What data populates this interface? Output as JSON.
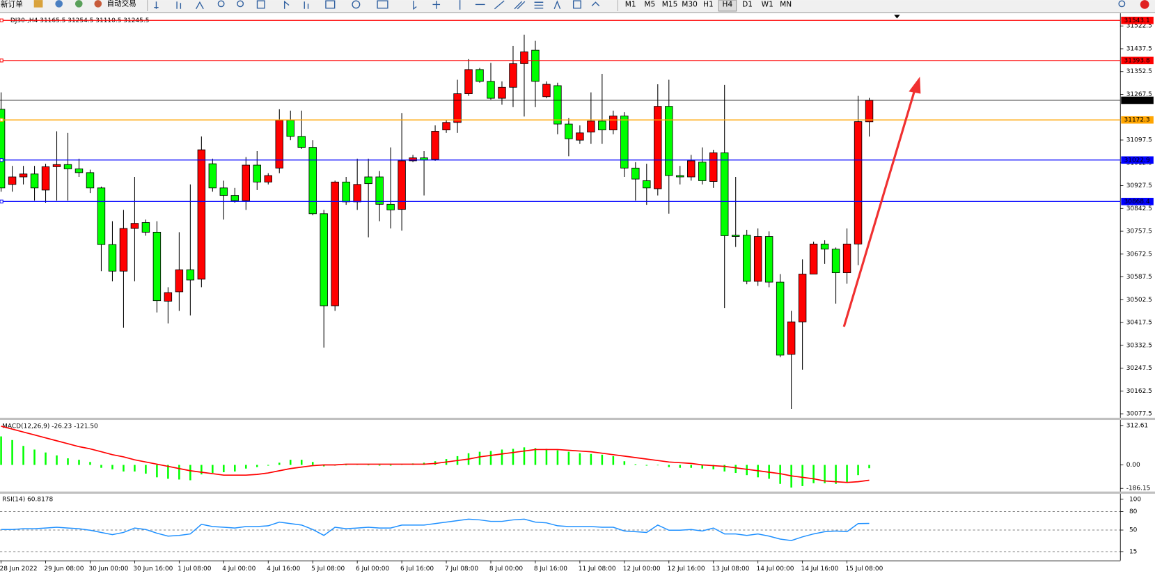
{
  "toolbar": {
    "buttons": [
      "新订单",
      "自动交易"
    ],
    "timeframes": [
      "M1",
      "M5",
      "M15",
      "M30",
      "H1",
      "H4",
      "D1",
      "W1",
      "MN"
    ]
  },
  "chart_data": [
    {
      "type": "candlestick",
      "title": "DJ30-,H4  31165.5 31254.5 31110.5 31245.5",
      "categories": [
        "28 Jun 2022",
        null,
        null,
        null,
        "29 Jun 08:00",
        null,
        null,
        null,
        "30 Jun 00:00",
        null,
        null,
        null,
        "30 Jun 16:00",
        null,
        null,
        null,
        "1 Jul 08:00",
        null,
        null,
        null,
        "4 Jul 00:00",
        null,
        null,
        null,
        "4 Jul 16:00",
        null,
        null,
        null,
        "5 Jul 08:00",
        null,
        null,
        null,
        "6 Jul 00:00",
        null,
        null,
        null,
        "6 Jul 16:00",
        null,
        null,
        null,
        "7 Jul 08:00",
        null,
        null,
        null,
        "8 Jul 00:00",
        null,
        null,
        null,
        "8 Jul 16:00",
        null,
        null,
        null,
        "11 Jul 08:00",
        null,
        null,
        null,
        "12 Jul 00:00",
        null,
        null,
        null,
        "12 Jul 16:00",
        null,
        null,
        null,
        "13 Jul 08:00",
        null,
        null,
        null,
        "14 Jul 00:00",
        null,
        null,
        null,
        "14 Jul 16:00",
        null,
        null,
        null,
        "15 Jul 08:00",
        null,
        null
      ],
      "open": [
        31212,
        30932,
        30960,
        30971,
        30911,
        30998,
        31006,
        30990,
        30976,
        30919,
        30708,
        30609,
        30768,
        30790,
        30754,
        30497,
        30532,
        30614,
        30579,
        31009,
        30919,
        30891,
        30872,
        31004,
        30941,
        30993,
        31171,
        31111,
        31070,
        30823,
        30480,
        30941,
        30867,
        30960,
        30960,
        30858,
        30839,
        31020,
        31031,
        31026,
        31135,
        31163,
        31270,
        31360,
        31316,
        31253,
        31294,
        31382,
        31432,
        31259,
        31300,
        31157,
        31097,
        31127,
        31168,
        31135,
        31187,
        30993,
        30946,
        30916,
        31223,
        30965,
        30960,
        31015,
        30943,
        31050,
        30743,
        30743,
        30571,
        30738,
        30568,
        30299,
        30420,
        30598,
        30710,
        30691,
        30603,
        30710,
        31165.5
      ],
      "high": [
        31275,
        31001,
        31001,
        31001,
        31009,
        31130,
        31124,
        31028,
        30987,
        30924,
        30795,
        30837,
        30960,
        30801,
        30795,
        30549,
        30754,
        30932,
        31111,
        31028,
        30946,
        30919,
        31034,
        31056,
        30974,
        31212,
        31207,
        31207,
        31097,
        30837,
        30946,
        30960,
        31028,
        31028,
        30982,
        31070,
        31198,
        31042,
        31056,
        31152,
        31171,
        31322,
        31399,
        31366,
        31385,
        31316,
        31448,
        31490,
        31467,
        31316,
        31311,
        31179,
        31152,
        31275,
        31344,
        31207,
        31201,
        31015,
        31009,
        31305,
        31322,
        31001,
        31042,
        31070,
        31061,
        31303,
        30960,
        30763,
        30768,
        30757,
        30598,
        30461,
        30653,
        30719,
        30724,
        30697,
        30768,
        31262,
        31254.5
      ],
      "low": [
        30905,
        30905,
        30932,
        30872,
        30864,
        30872,
        30872,
        30960,
        30900,
        30609,
        30571,
        30398,
        30571,
        30741,
        30455,
        30414,
        30461,
        30444,
        30549,
        30905,
        30801,
        30864,
        30837,
        30911,
        30932,
        30974,
        31097,
        31064,
        30817,
        30324,
        30461,
        30856,
        30837,
        30735,
        30795,
        30768,
        30760,
        31015,
        30891,
        31020,
        31124,
        31124,
        31262,
        31311,
        31248,
        31229,
        31220,
        31185,
        31220,
        31253,
        31119,
        31037,
        31083,
        31083,
        31083,
        31119,
        30960,
        30872,
        30856,
        30891,
        30823,
        30932,
        30946,
        30932,
        30919,
        30472,
        30699,
        30560,
        30554,
        30549,
        30288,
        30096,
        30242,
        30598,
        30636,
        30488,
        30562,
        30631,
        31110.5
      ],
      "close": [
        30919,
        30960,
        30971,
        30919,
        30998,
        31006,
        30990,
        30976,
        30919,
        30708,
        30609,
        30768,
        30787,
        30754,
        30499,
        30529,
        30614,
        30576,
        31061,
        30919,
        30891,
        30872,
        31004,
        30941,
        30965,
        31171,
        31111,
        31070,
        30823,
        30480,
        30941,
        30867,
        30932,
        30935,
        30858,
        30837,
        31020,
        31031,
        31023,
        31130,
        31163,
        31270,
        31360,
        31316,
        31253,
        31294,
        31382,
        31426,
        31316,
        31305,
        31157,
        31102,
        31124,
        31168,
        31135,
        31187,
        30993,
        30952,
        30919,
        31223,
        30965,
        30960,
        31020,
        30946,
        31050,
        30741,
        30738,
        30571,
        30738,
        30568,
        30296,
        30420,
        30598,
        30710,
        30691,
        30603,
        30710,
        31166,
        31245.5
      ],
      "up_color": "#ff0000",
      "down_color": "#00ff00",
      "ylim": [
        30064,
        31564
      ],
      "yticks": [
        31522.5,
        31437.5,
        31352.5,
        31267.5,
        31097.5,
        31012.5,
        30927.5,
        30842.5,
        30757.5,
        30672.5,
        30587.5,
        30502.5,
        30417.5,
        30332.5,
        30247.5,
        30162.5,
        30077.5
      ],
      "levels": [
        {
          "value": 31543.1,
          "color": "#ff0000"
        },
        {
          "value": 31393.8,
          "color": "#ff0000"
        },
        {
          "value": 31172.3,
          "color": "#ffa500"
        },
        {
          "value": 31022.9,
          "color": "#0000ff"
        },
        {
          "value": 30868.4,
          "color": "#0000ff"
        }
      ]
    },
    {
      "type": "macd",
      "title": "MACD(12,26,9) -26.23 -121.50",
      "values": [
        225.8,
        196.9,
        150.5,
        121.6,
        98.4,
        75.3,
        52.1,
        40.5,
        23.2,
        -23.2,
        -34.7,
        -52.1,
        -52.1,
        -69.5,
        -98.4,
        -110,
        -115.8,
        -121.6,
        -75.3,
        -63.7,
        -57.9,
        -52.1,
        -29,
        -17.4,
        -5.8,
        17.4,
        40.5,
        40.5,
        23.2,
        -11.6,
        -5.8,
        0,
        5.8,
        0,
        -5.8,
        -5.8,
        5.8,
        11.6,
        17.4,
        29,
        46.3,
        69.5,
        92.6,
        104.2,
        110,
        121.6,
        127.4,
        139,
        133.2,
        127.4,
        115.8,
        104.2,
        92.6,
        86.9,
        81.1,
        69.5,
        29,
        5.8,
        -5.8,
        0,
        -17.4,
        -23.2,
        -23.2,
        -29,
        -34.7,
        -52.1,
        -63.7,
        -81.1,
        -98.4,
        -110,
        -150.5,
        -179.5,
        -167.9,
        -144.8,
        -144.8,
        -150.5,
        -139,
        -81.1,
        -26.23
      ],
      "signal": [
        306.9,
        283.7,
        260.6,
        237.4,
        214.2,
        191.1,
        167.9,
        144.8,
        127.4,
        104.2,
        81.1,
        63.7,
        40.5,
        23.2,
        5.8,
        -11.6,
        -29,
        -46.3,
        -57.9,
        -69.5,
        -81.1,
        -81.1,
        -81.1,
        -75.3,
        -63.7,
        -46.3,
        -29,
        -17.4,
        -5.8,
        0,
        0,
        5.8,
        5.8,
        5.8,
        5.8,
        5.8,
        5.8,
        5.8,
        5.8,
        11.6,
        23.2,
        34.7,
        46.3,
        63.7,
        75.3,
        86.9,
        98.4,
        110,
        121.6,
        121.6,
        121.6,
        115.8,
        110,
        104.2,
        92.6,
        81.1,
        69.5,
        57.9,
        46.3,
        34.7,
        23.2,
        17.4,
        11.6,
        0,
        -5.8,
        -11.6,
        -23.2,
        -34.7,
        -46.3,
        -57.9,
        -69.5,
        -86.9,
        -98.4,
        -110,
        -127.4,
        -133.2,
        -139,
        -133.2,
        -121.5
      ],
      "color": "#00ff00",
      "signal_color": "#ff0000",
      "ylim": [
        -208,
        353
      ],
      "yticks": [
        312.61,
        {
          "value": 0,
          "label": "0.00"
        },
        -186.15
      ]
    },
    {
      "type": "line",
      "title": "RSI(14) 60.8178",
      "values": [
        50.9,
        50.9,
        52.1,
        52.1,
        53.3,
        54.5,
        53.3,
        52.1,
        49.7,
        46.1,
        42.5,
        46.1,
        53.3,
        50.9,
        44.9,
        40.1,
        41.3,
        43.7,
        59.3,
        55.7,
        54.5,
        53.3,
        55.7,
        55.7,
        56.9,
        62.9,
        60.5,
        58.1,
        50.9,
        41.3,
        54.5,
        52.1,
        53.3,
        54.5,
        53.3,
        53.3,
        58.1,
        58.1,
        58.1,
        60.5,
        62.9,
        65.3,
        67.7,
        66.5,
        64.1,
        64.1,
        66.5,
        67.7,
        62.9,
        61.7,
        56.9,
        55.7,
        55.7,
        55.7,
        54.5,
        54.5,
        48.5,
        47.3,
        46.1,
        58.1,
        49.7,
        49.7,
        50.9,
        48.5,
        53.3,
        43.7,
        43.7,
        41.3,
        43.7,
        40.1,
        35.3,
        32.9,
        38.9,
        43.7,
        47.3,
        48.5,
        47.3,
        60.5,
        60.8178
      ],
      "color": "#1e90ff",
      "ylim": [
        0,
        100
      ],
      "yticks": [
        100,
        80,
        50,
        15
      ],
      "levels": [
        80,
        50,
        15
      ]
    }
  ]
}
